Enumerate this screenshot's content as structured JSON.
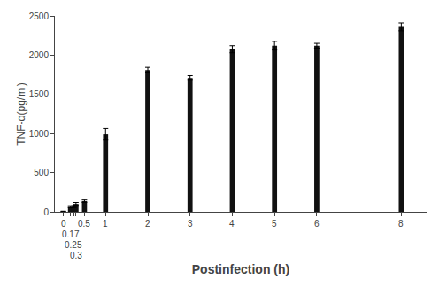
{
  "chart_data": {
    "type": "bar",
    "x": [
      0,
      0.17,
      0.25,
      0.3,
      0.5,
      1,
      2,
      3,
      4,
      5,
      6,
      8
    ],
    "values": [
      5,
      65,
      65,
      100,
      135,
      990,
      1810,
      1710,
      2075,
      2120,
      2120,
      2360
    ],
    "errors": [
      3,
      12,
      12,
      18,
      15,
      75,
      35,
      30,
      45,
      55,
      30,
      50
    ],
    "color": "#111111",
    "xlabel": "Postinfection (h)",
    "ylabel": "TNF-α(pg/ml)",
    "xlim": [
      -0.2,
      8.6
    ],
    "xticks": [
      0,
      0.17,
      0.25,
      0.3,
      0.5,
      1,
      2,
      3,
      4,
      5,
      6,
      8
    ],
    "ylim": [
      0,
      2500
    ],
    "yticks": [
      0,
      500,
      1000,
      1500,
      2000,
      2500
    ],
    "grid": false
  }
}
